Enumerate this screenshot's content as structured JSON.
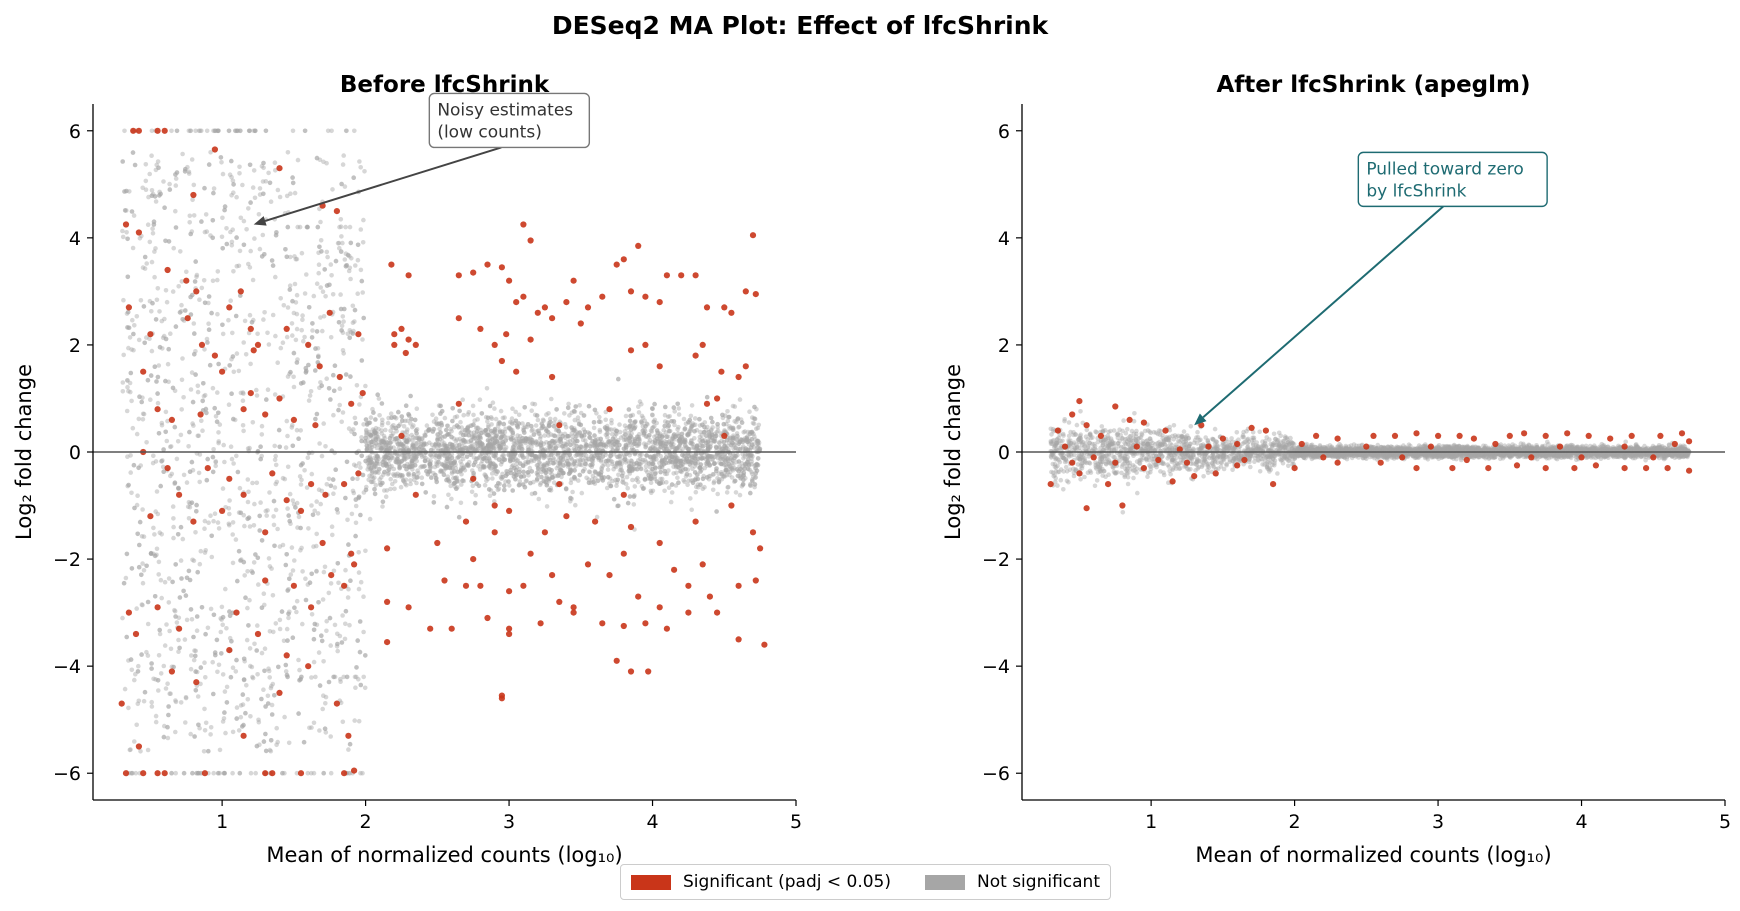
{
  "figure": {
    "title": "DESeq2 MA Plot: Effect of lfcShrink"
  },
  "colors": {
    "significant": "#c93519",
    "not_significant": "#a6a6a6",
    "annotation_left": "#444444",
    "annotation_right": "#1e6b72"
  },
  "legend": {
    "placement": "bottom-center",
    "items": [
      {
        "label": "Significant (padj < 0.05)",
        "color": "#c93519"
      },
      {
        "label": "Not significant",
        "color": "#a6a6a6"
      }
    ]
  },
  "chart_data": [
    {
      "type": "scatter",
      "title": "Before lfcShrink",
      "xlabel": "Mean of normalized counts (log₁₀)",
      "ylabel": "Log₂ fold change",
      "xlim": [
        0.1,
        5.0
      ],
      "ylim": [
        -6.5,
        6.5
      ],
      "xticks": [
        1,
        2,
        3,
        4,
        5
      ],
      "xtick_labels": [
        "1",
        "2",
        "3",
        "4",
        "5"
      ],
      "yticks": [
        -6,
        -4,
        -2,
        0,
        2,
        4,
        6
      ],
      "ytick_labels": [
        "−6",
        "−4",
        "−2",
        "0",
        "2",
        "4",
        "6"
      ],
      "reference_line_y": 0,
      "grid": false,
      "annotation": {
        "text": [
          "Noisy estimates",
          "(low counts)"
        ],
        "text_at": [
          2.5,
          5.8
        ],
        "arrow_to": [
          1.22,
          4.25
        ]
      },
      "significant_points": [
        [
          0.38,
          6.0
        ],
        [
          0.42,
          6.0
        ],
        [
          0.55,
          6.0
        ],
        [
          0.6,
          6.0
        ],
        [
          0.33,
          4.25
        ],
        [
          0.42,
          4.1
        ],
        [
          0.95,
          5.65
        ],
        [
          1.4,
          5.3
        ],
        [
          0.8,
          4.8
        ],
        [
          1.7,
          4.6
        ],
        [
          1.8,
          4.5
        ],
        [
          0.35,
          2.7
        ],
        [
          0.5,
          2.2
        ],
        [
          0.62,
          3.4
        ],
        [
          0.75,
          3.2
        ],
        [
          0.82,
          3.0
        ],
        [
          0.76,
          2.5
        ],
        [
          0.86,
          2.0
        ],
        [
          0.95,
          1.8
        ],
        [
          1.25,
          2.0
        ],
        [
          1.22,
          1.9
        ],
        [
          1.13,
          3.0
        ],
        [
          1.05,
          2.7
        ],
        [
          1.2,
          2.3
        ],
        [
          1.45,
          2.3
        ],
        [
          1.6,
          2.0
        ],
        [
          1.68,
          1.6
        ],
        [
          1.82,
          1.4
        ],
        [
          1.95,
          2.2
        ],
        [
          1.98,
          1.1
        ],
        [
          1.9,
          0.9
        ],
        [
          1.75,
          2.6
        ],
        [
          1.2,
          1.1
        ],
        [
          1.0,
          1.5
        ],
        [
          0.45,
          1.5
        ],
        [
          0.55,
          0.8
        ],
        [
          0.65,
          0.6
        ],
        [
          0.85,
          0.7
        ],
        [
          1.15,
          0.8
        ],
        [
          1.3,
          0.7
        ],
        [
          1.4,
          1.0
        ],
        [
          1.5,
          0.6
        ],
        [
          1.65,
          0.5
        ],
        [
          0.45,
          0.0
        ],
        [
          0.62,
          -0.3
        ],
        [
          0.7,
          -0.8
        ],
        [
          0.9,
          -0.3
        ],
        [
          1.05,
          -0.5
        ],
        [
          1.15,
          -0.8
        ],
        [
          1.35,
          -0.4
        ],
        [
          1.45,
          -0.9
        ],
        [
          1.62,
          -0.6
        ],
        [
          1.72,
          -0.8
        ],
        [
          1.85,
          -0.6
        ],
        [
          1.95,
          -0.4
        ],
        [
          0.5,
          -1.2
        ],
        [
          0.8,
          -1.3
        ],
        [
          1.0,
          -1.1
        ],
        [
          1.3,
          -1.5
        ],
        [
          1.55,
          -1.1
        ],
        [
          1.7,
          -1.7
        ],
        [
          1.9,
          -1.9
        ],
        [
          1.92,
          -2.1
        ],
        [
          0.35,
          -3.0
        ],
        [
          0.4,
          -3.4
        ],
        [
          0.55,
          -2.9
        ],
        [
          0.7,
          -3.3
        ],
        [
          1.1,
          -3.0
        ],
        [
          1.3,
          -2.4
        ],
        [
          1.5,
          -2.5
        ],
        [
          1.62,
          -2.9
        ],
        [
          1.76,
          -2.3
        ],
        [
          1.85,
          -2.5
        ],
        [
          1.05,
          -3.7
        ],
        [
          1.25,
          -3.4
        ],
        [
          1.45,
          -3.8
        ],
        [
          1.6,
          -4.0
        ],
        [
          0.65,
          -4.1
        ],
        [
          0.82,
          -4.3
        ],
        [
          0.3,
          -4.7
        ],
        [
          0.42,
          -5.5
        ],
        [
          1.15,
          -5.3
        ],
        [
          1.4,
          -4.5
        ],
        [
          1.8,
          -4.7
        ],
        [
          1.88,
          -5.3
        ],
        [
          1.85,
          -6.0
        ],
        [
          1.92,
          -5.95
        ],
        [
          0.33,
          -6.0
        ],
        [
          0.45,
          -6.0
        ],
        [
          0.55,
          -6.0
        ],
        [
          0.6,
          -6.0
        ],
        [
          0.88,
          -6.0
        ],
        [
          1.3,
          -6.0
        ],
        [
          1.35,
          -6.0
        ],
        [
          1.55,
          -6.0
        ],
        [
          2.18,
          3.5
        ],
        [
          2.3,
          3.3
        ],
        [
          2.2,
          2.2
        ],
        [
          2.25,
          2.3
        ],
        [
          2.3,
          2.1
        ],
        [
          2.35,
          2.0
        ],
        [
          2.2,
          2.0
        ],
        [
          2.28,
          1.85
        ],
        [
          2.65,
          3.3
        ],
        [
          2.75,
          3.35
        ],
        [
          2.85,
          3.5
        ],
        [
          2.95,
          3.45
        ],
        [
          3.1,
          4.25
        ],
        [
          3.15,
          3.95
        ],
        [
          3.0,
          3.2
        ],
        [
          3.05,
          2.8
        ],
        [
          2.65,
          2.5
        ],
        [
          2.8,
          2.3
        ],
        [
          2.9,
          2.0
        ],
        [
          3.15,
          2.1
        ],
        [
          3.25,
          2.7
        ],
        [
          3.4,
          2.8
        ],
        [
          3.5,
          2.4
        ],
        [
          3.65,
          2.9
        ],
        [
          3.75,
          3.5
        ],
        [
          3.8,
          3.6
        ],
        [
          3.85,
          3.0
        ],
        [
          3.9,
          3.85
        ],
        [
          3.95,
          2.9
        ],
        [
          4.05,
          2.8
        ],
        [
          4.1,
          3.3
        ],
        [
          4.2,
          3.3
        ],
        [
          4.3,
          3.3
        ],
        [
          4.38,
          2.7
        ],
        [
          4.5,
          2.7
        ],
        [
          4.65,
          3.0
        ],
        [
          4.7,
          4.05
        ],
        [
          4.72,
          2.95
        ],
        [
          4.55,
          2.6
        ],
        [
          3.55,
          2.7
        ],
        [
          3.45,
          3.2
        ],
        [
          3.3,
          2.5
        ],
        [
          3.2,
          2.6
        ],
        [
          3.1,
          2.9
        ],
        [
          2.98,
          2.2
        ],
        [
          2.95,
          1.7
        ],
        [
          3.05,
          1.5
        ],
        [
          3.3,
          1.4
        ],
        [
          3.85,
          1.9
        ],
        [
          3.95,
          2.0
        ],
        [
          4.05,
          1.6
        ],
        [
          4.3,
          1.8
        ],
        [
          4.35,
          2.0
        ],
        [
          4.48,
          1.5
        ],
        [
          4.6,
          1.4
        ],
        [
          4.65,
          1.6
        ],
        [
          4.38,
          0.9
        ],
        [
          4.45,
          1.0
        ],
        [
          2.65,
          0.9
        ],
        [
          3.7,
          0.8
        ],
        [
          4.5,
          0.3
        ],
        [
          2.25,
          0.3
        ],
        [
          3.35,
          0.5
        ],
        [
          2.35,
          -0.8
        ],
        [
          2.75,
          -0.5
        ],
        [
          3.35,
          -0.6
        ],
        [
          3.8,
          -0.8
        ],
        [
          2.9,
          -1.0
        ],
        [
          2.7,
          -1.3
        ],
        [
          2.9,
          -1.5
        ],
        [
          3.0,
          -1.1
        ],
        [
          3.25,
          -1.5
        ],
        [
          3.4,
          -1.2
        ],
        [
          3.6,
          -1.3
        ],
        [
          3.85,
          -1.4
        ],
        [
          4.05,
          -1.7
        ],
        [
          4.3,
          -1.3
        ],
        [
          4.55,
          -1.0
        ],
        [
          4.7,
          -1.5
        ],
        [
          4.75,
          -1.8
        ],
        [
          2.15,
          -1.8
        ],
        [
          2.5,
          -1.7
        ],
        [
          2.75,
          -2.0
        ],
        [
          3.15,
          -1.9
        ],
        [
          3.3,
          -2.3
        ],
        [
          3.55,
          -2.1
        ],
        [
          3.8,
          -1.9
        ],
        [
          4.15,
          -2.2
        ],
        [
          4.35,
          -2.1
        ],
        [
          2.55,
          -2.4
        ],
        [
          2.7,
          -2.5
        ],
        [
          2.8,
          -2.5
        ],
        [
          3.0,
          -2.6
        ],
        [
          3.1,
          -2.5
        ],
        [
          3.35,
          -2.8
        ],
        [
          3.45,
          -2.9
        ],
        [
          3.7,
          -2.3
        ],
        [
          3.9,
          -2.7
        ],
        [
          4.05,
          -2.9
        ],
        [
          4.25,
          -2.5
        ],
        [
          4.4,
          -2.7
        ],
        [
          4.6,
          -2.5
        ],
        [
          4.72,
          -2.4
        ],
        [
          2.15,
          -2.8
        ],
        [
          2.3,
          -2.9
        ],
        [
          2.45,
          -3.3
        ],
        [
          2.6,
          -3.3
        ],
        [
          2.85,
          -3.1
        ],
        [
          3.0,
          -3.3
        ],
        [
          3.22,
          -3.2
        ],
        [
          3.45,
          -3.0
        ],
        [
          3.65,
          -3.2
        ],
        [
          3.8,
          -3.25
        ],
        [
          3.95,
          -3.2
        ],
        [
          4.1,
          -3.3
        ],
        [
          4.25,
          -3.0
        ],
        [
          4.45,
          -3.0
        ],
        [
          4.6,
          -3.5
        ],
        [
          4.78,
          -3.6
        ],
        [
          2.15,
          -3.55
        ],
        [
          3.0,
          -3.4
        ],
        [
          3.75,
          -3.9
        ],
        [
          3.85,
          -4.1
        ],
        [
          3.97,
          -4.1
        ],
        [
          2.95,
          -4.55
        ],
        [
          2.95,
          -4.6
        ]
      ]
    },
    {
      "type": "scatter",
      "title": "After lfcShrink (apeglm)",
      "xlabel": "Mean of normalized counts (log₁₀)",
      "ylabel": "Log₂ fold change",
      "xlim": [
        0.1,
        5.0
      ],
      "ylim": [
        -6.5,
        6.5
      ],
      "xticks": [
        1,
        2,
        3,
        4,
        5
      ],
      "xtick_labels": [
        "1",
        "2",
        "3",
        "4",
        "5"
      ],
      "yticks": [
        -6,
        -4,
        -2,
        0,
        2,
        4,
        6
      ],
      "ytick_labels": [
        "−6",
        "−4",
        "−2",
        "0",
        "2",
        "4",
        "6"
      ],
      "reference_line_y": 0,
      "grid": false,
      "annotation": {
        "text": [
          "Pulled toward zero",
          "by lfcShrink"
        ],
        "text_at": [
          2.5,
          4.7
        ],
        "arrow_to": [
          1.3,
          0.5
        ]
      },
      "significant_points": [
        [
          0.5,
          0.95
        ],
        [
          0.75,
          0.85
        ],
        [
          0.85,
          0.6
        ],
        [
          0.45,
          0.7
        ],
        [
          0.35,
          0.4
        ],
        [
          0.55,
          0.5
        ],
        [
          0.65,
          0.3
        ],
        [
          0.95,
          0.55
        ],
        [
          1.1,
          0.4
        ],
        [
          1.35,
          0.5
        ],
        [
          1.5,
          0.25
        ],
        [
          1.7,
          0.45
        ],
        [
          1.8,
          0.4
        ],
        [
          2.15,
          0.3
        ],
        [
          2.3,
          0.25
        ],
        [
          2.55,
          0.3
        ],
        [
          2.7,
          0.3
        ],
        [
          2.85,
          0.35
        ],
        [
          3.0,
          0.3
        ],
        [
          3.15,
          0.3
        ],
        [
          3.25,
          0.25
        ],
        [
          3.5,
          0.3
        ],
        [
          3.6,
          0.35
        ],
        [
          3.75,
          0.3
        ],
        [
          3.9,
          0.35
        ],
        [
          4.05,
          0.3
        ],
        [
          4.2,
          0.25
        ],
        [
          4.35,
          0.3
        ],
        [
          4.55,
          0.3
        ],
        [
          4.7,
          0.35
        ],
        [
          4.75,
          0.2
        ],
        [
          0.3,
          -0.6
        ],
        [
          0.5,
          -0.4
        ],
        [
          0.55,
          -1.05
        ],
        [
          0.8,
          -1.0
        ],
        [
          0.7,
          -0.6
        ],
        [
          0.95,
          -0.3
        ],
        [
          1.15,
          -0.55
        ],
        [
          1.3,
          -0.45
        ],
        [
          1.45,
          -0.4
        ],
        [
          1.6,
          -0.25
        ],
        [
          1.85,
          -0.6
        ],
        [
          2.0,
          -0.3
        ],
        [
          2.3,
          -0.2
        ],
        [
          2.6,
          -0.2
        ],
        [
          2.85,
          -0.3
        ],
        [
          3.1,
          -0.3
        ],
        [
          3.35,
          -0.3
        ],
        [
          3.55,
          -0.25
        ],
        [
          3.75,
          -0.3
        ],
        [
          3.95,
          -0.3
        ],
        [
          4.1,
          -0.25
        ],
        [
          4.3,
          -0.3
        ],
        [
          4.45,
          -0.3
        ],
        [
          4.6,
          -0.3
        ],
        [
          4.75,
          -0.35
        ],
        [
          0.4,
          0.1
        ],
        [
          0.6,
          -0.1
        ],
        [
          0.9,
          0.1
        ],
        [
          1.2,
          0.05
        ],
        [
          1.4,
          0.1
        ],
        [
          1.6,
          0.15
        ],
        [
          2.05,
          0.15
        ],
        [
          2.5,
          0.1
        ],
        [
          2.95,
          0.1
        ],
        [
          3.4,
          0.15
        ],
        [
          3.85,
          0.1
        ],
        [
          4.3,
          0.1
        ],
        [
          4.65,
          0.15
        ],
        [
          0.45,
          -0.2
        ],
        [
          0.75,
          -0.2
        ],
        [
          1.05,
          -0.15
        ],
        [
          1.25,
          -0.2
        ],
        [
          1.65,
          -0.15
        ],
        [
          2.2,
          -0.1
        ],
        [
          2.75,
          -0.1
        ],
        [
          3.2,
          -0.15
        ],
        [
          3.65,
          -0.1
        ],
        [
          4.0,
          -0.1
        ],
        [
          4.5,
          -0.1
        ]
      ]
    }
  ]
}
